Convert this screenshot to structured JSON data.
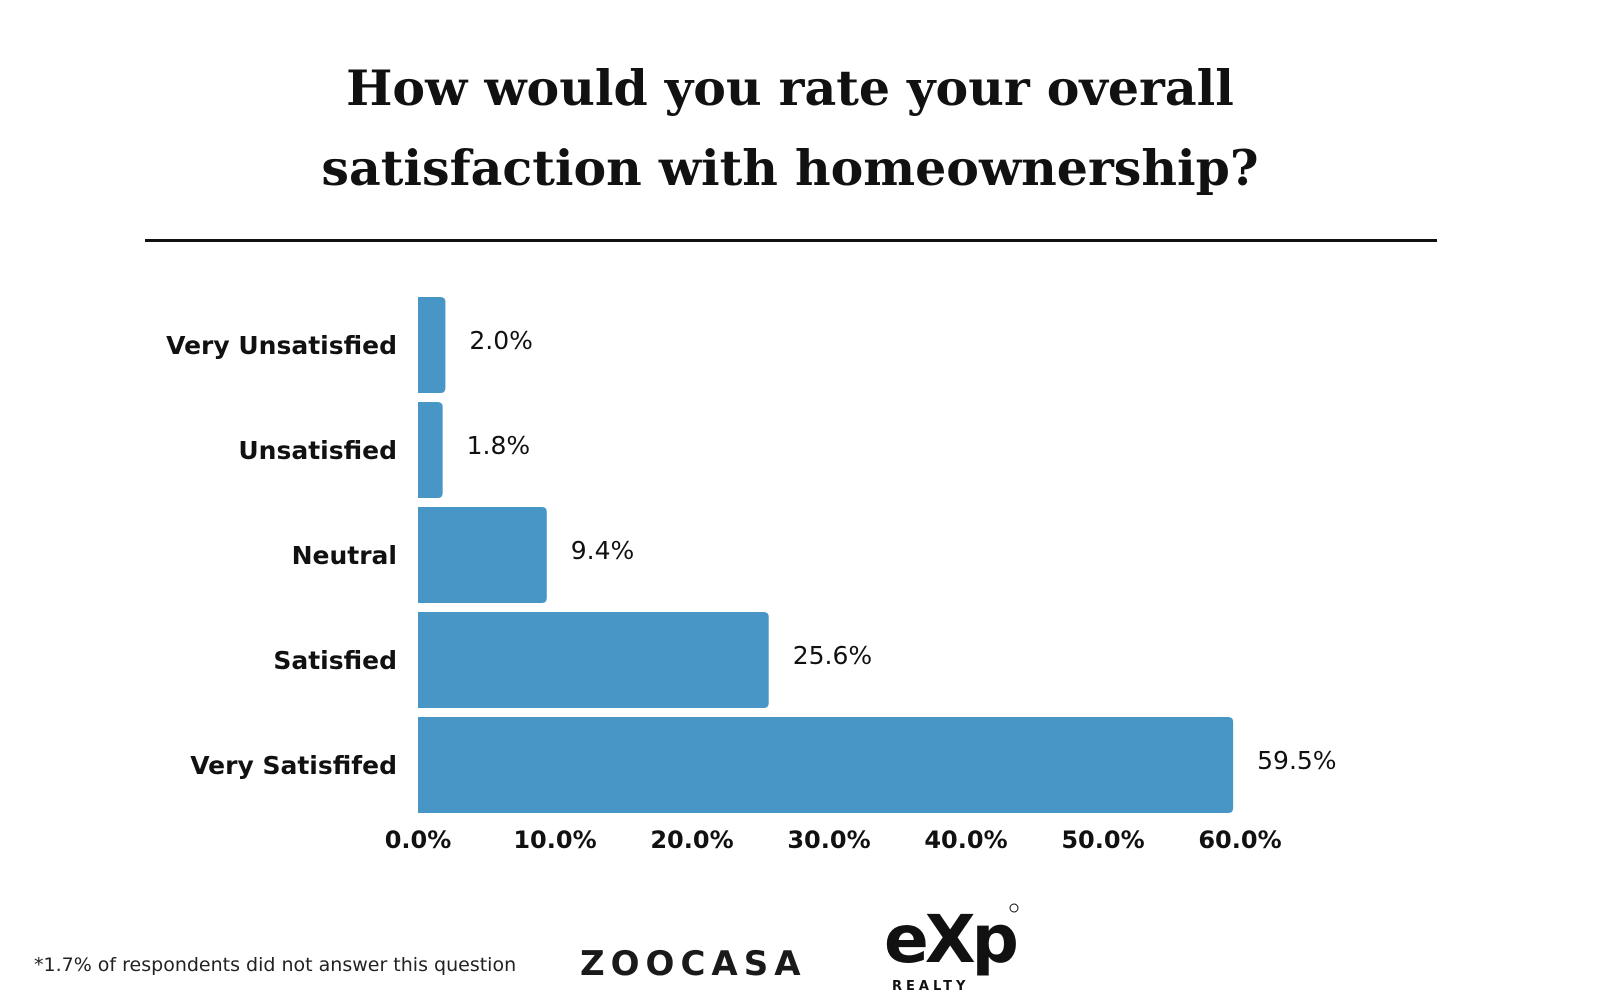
{
  "title_line1": "How would you rate your overall",
  "title_line2": "satisfaction with homeownership?",
  "footnote": "*1.7% of respondents did not answer this question",
  "logos": {
    "zoocasa": "ZOOCASA",
    "exp": "eXp",
    "exp_sub": "REALTY"
  },
  "colors": {
    "bar": "#4896c5",
    "text": "#111111"
  },
  "chart_data": {
    "type": "bar",
    "orientation": "horizontal",
    "categories": [
      "Very Unsatisfied",
      "Unsatisfied",
      "Neutral",
      "Satisfied",
      "Very Satisfifed"
    ],
    "values": [
      2.0,
      1.8,
      9.4,
      25.6,
      59.5
    ],
    "value_labels": [
      "2.0%",
      "1.8%",
      "9.4%",
      "25.6%",
      "59.5%"
    ],
    "xlim": [
      0,
      60
    ],
    "xticks": [
      0,
      10,
      20,
      30,
      40,
      50,
      60
    ],
    "xtick_labels": [
      "0.0%",
      "10.0%",
      "20.0%",
      "30.0%",
      "40.0%",
      "50.0%",
      "60.0%"
    ],
    "grid": false,
    "legend": "none"
  }
}
